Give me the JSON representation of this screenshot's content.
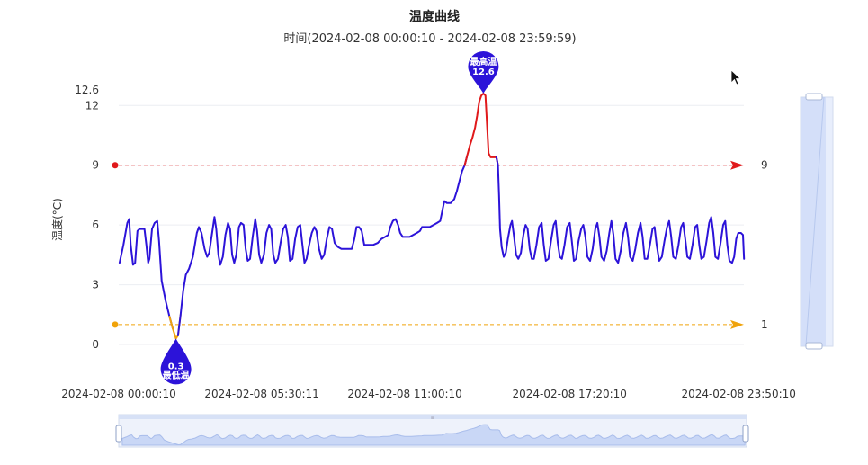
{
  "chart_data": {
    "type": "line",
    "title": "温度曲线",
    "subtitle": "时间(2024-02-08 00:00:10 - 2024-02-08 23:59:59)",
    "ylabel": "温度(°C)",
    "xlabel": "",
    "ylim": [
      0,
      12.6
    ],
    "x_range": [
      "2024-02-08 00:00:10",
      "2024-02-08 23:59:59"
    ],
    "y_ticks": [
      0,
      3,
      6,
      9,
      12,
      12.6
    ],
    "y_tick_labels": [
      "0",
      "3",
      "6",
      "9",
      "12",
      "12.6"
    ],
    "x_tick_labels": [
      "2024-02-08 00:00:10",
      "2024-02-08 05:30:11",
      "2024-02-08 11:00:10",
      "2024-02-08 17:20:10",
      "2024-02-08 23:50:10"
    ],
    "x_tick_values_hours": [
      0,
      5.5,
      11,
      17.333,
      23.833
    ],
    "grid": true,
    "series": [
      {
        "name": "",
        "color": "#2c13d9",
        "points": [
          [
            0.03,
            4.1
          ],
          [
            0.18,
            5.0
          ],
          [
            0.33,
            6.1
          ],
          [
            0.4,
            6.3
          ],
          [
            0.46,
            5.0
          ],
          [
            0.55,
            4.0
          ],
          [
            0.63,
            4.1
          ],
          [
            0.72,
            5.7
          ],
          [
            0.8,
            5.8
          ],
          [
            0.92,
            5.8
          ],
          [
            0.99,
            5.8
          ],
          [
            1.06,
            5.0
          ],
          [
            1.13,
            4.1
          ],
          [
            1.18,
            4.3
          ],
          [
            1.28,
            5.8
          ],
          [
            1.38,
            6.1
          ],
          [
            1.48,
            6.2
          ],
          [
            1.55,
            5.2
          ],
          [
            1.65,
            3.2
          ],
          [
            1.8,
            2.2
          ],
          [
            1.95,
            1.4
          ],
          [
            2.08,
            0.8
          ],
          [
            2.2,
            0.3
          ],
          [
            2.28,
            0.45
          ],
          [
            2.38,
            1.5
          ],
          [
            2.48,
            2.7
          ],
          [
            2.58,
            3.5
          ],
          [
            2.7,
            3.8
          ],
          [
            2.85,
            4.4
          ],
          [
            3.0,
            5.6
          ],
          [
            3.08,
            5.9
          ],
          [
            3.18,
            5.6
          ],
          [
            3.3,
            4.8
          ],
          [
            3.4,
            4.4
          ],
          [
            3.48,
            4.6
          ],
          [
            3.58,
            5.5
          ],
          [
            3.68,
            6.4
          ],
          [
            3.75,
            5.8
          ],
          [
            3.83,
            4.5
          ],
          [
            3.9,
            4.0
          ],
          [
            4.0,
            4.4
          ],
          [
            4.1,
            5.5
          ],
          [
            4.2,
            6.1
          ],
          [
            4.28,
            5.8
          ],
          [
            4.36,
            4.5
          ],
          [
            4.44,
            4.1
          ],
          [
            4.52,
            4.5
          ],
          [
            4.62,
            5.9
          ],
          [
            4.7,
            6.1
          ],
          [
            4.8,
            6.0
          ],
          [
            4.88,
            4.8
          ],
          [
            4.96,
            4.2
          ],
          [
            5.05,
            4.3
          ],
          [
            5.15,
            5.4
          ],
          [
            5.25,
            6.3
          ],
          [
            5.32,
            5.7
          ],
          [
            5.4,
            4.5
          ],
          [
            5.48,
            4.1
          ],
          [
            5.58,
            4.5
          ],
          [
            5.68,
            5.6
          ],
          [
            5.78,
            6.0
          ],
          [
            5.86,
            5.8
          ],
          [
            5.94,
            4.5
          ],
          [
            6.02,
            4.1
          ],
          [
            6.12,
            4.3
          ],
          [
            6.22,
            5.1
          ],
          [
            6.32,
            5.8
          ],
          [
            6.42,
            6.0
          ],
          [
            6.5,
            5.4
          ],
          [
            6.58,
            4.2
          ],
          [
            6.68,
            4.3
          ],
          [
            6.78,
            5.3
          ],
          [
            6.88,
            5.9
          ],
          [
            6.98,
            6.0
          ],
          [
            7.06,
            5.0
          ],
          [
            7.14,
            4.1
          ],
          [
            7.22,
            4.3
          ],
          [
            7.32,
            5.0
          ],
          [
            7.42,
            5.6
          ],
          [
            7.52,
            5.9
          ],
          [
            7.6,
            5.7
          ],
          [
            7.7,
            4.8
          ],
          [
            7.8,
            4.3
          ],
          [
            7.9,
            4.5
          ],
          [
            8.0,
            5.3
          ],
          [
            8.1,
            5.9
          ],
          [
            8.2,
            5.8
          ],
          [
            8.3,
            5.1
          ],
          [
            8.42,
            4.9
          ],
          [
            8.56,
            4.8
          ],
          [
            8.7,
            4.8
          ],
          [
            8.84,
            4.8
          ],
          [
            8.96,
            4.8
          ],
          [
            9.06,
            5.3
          ],
          [
            9.14,
            5.9
          ],
          [
            9.24,
            5.9
          ],
          [
            9.34,
            5.7
          ],
          [
            9.44,
            5.0
          ],
          [
            9.6,
            5.0
          ],
          [
            9.78,
            5.0
          ],
          [
            9.96,
            5.1
          ],
          [
            10.1,
            5.3
          ],
          [
            10.24,
            5.4
          ],
          [
            10.36,
            5.5
          ],
          [
            10.44,
            5.9
          ],
          [
            10.54,
            6.2
          ],
          [
            10.64,
            6.3
          ],
          [
            10.74,
            6.0
          ],
          [
            10.82,
            5.6
          ],
          [
            10.92,
            5.4
          ],
          [
            11.04,
            5.4
          ],
          [
            11.18,
            5.4
          ],
          [
            11.32,
            5.5
          ],
          [
            11.46,
            5.6
          ],
          [
            11.58,
            5.7
          ],
          [
            11.66,
            5.9
          ],
          [
            11.8,
            5.9
          ],
          [
            11.96,
            5.9
          ],
          [
            12.1,
            6.0
          ],
          [
            12.24,
            6.1
          ],
          [
            12.36,
            6.2
          ],
          [
            12.44,
            6.7
          ],
          [
            12.52,
            7.2
          ],
          [
            12.62,
            7.1
          ],
          [
            12.76,
            7.1
          ],
          [
            12.9,
            7.3
          ],
          [
            13.0,
            7.7
          ],
          [
            13.1,
            8.2
          ],
          [
            13.2,
            8.7
          ],
          [
            13.3,
            9.0
          ],
          [
            13.4,
            9.5
          ],
          [
            13.5,
            10.0
          ],
          [
            13.6,
            10.4
          ],
          [
            13.7,
            10.9
          ],
          [
            13.78,
            11.5
          ],
          [
            13.86,
            12.2
          ],
          [
            13.94,
            12.5
          ],
          [
            14.02,
            12.6
          ],
          [
            14.1,
            12.5
          ],
          [
            14.16,
            11.0
          ],
          [
            14.22,
            9.6
          ],
          [
            14.3,
            9.4
          ],
          [
            14.42,
            9.4
          ],
          [
            14.52,
            9.4
          ],
          [
            14.58,
            9.0
          ],
          [
            14.62,
            7.5
          ],
          [
            14.66,
            5.8
          ],
          [
            14.72,
            4.9
          ],
          [
            14.8,
            4.4
          ],
          [
            14.88,
            4.6
          ],
          [
            14.96,
            5.3
          ],
          [
            15.06,
            6.0
          ],
          [
            15.12,
            6.2
          ],
          [
            15.2,
            5.4
          ],
          [
            15.28,
            4.5
          ],
          [
            15.36,
            4.3
          ],
          [
            15.46,
            4.6
          ],
          [
            15.56,
            5.5
          ],
          [
            15.64,
            6.0
          ],
          [
            15.72,
            5.8
          ],
          [
            15.8,
            4.8
          ],
          [
            15.88,
            4.3
          ],
          [
            15.96,
            4.3
          ],
          [
            16.06,
            5.0
          ],
          [
            16.16,
            5.9
          ],
          [
            16.26,
            6.1
          ],
          [
            16.34,
            5.0
          ],
          [
            16.42,
            4.2
          ],
          [
            16.52,
            4.3
          ],
          [
            16.62,
            5.2
          ],
          [
            16.72,
            6.0
          ],
          [
            16.8,
            6.2
          ],
          [
            16.88,
            5.1
          ],
          [
            16.96,
            4.4
          ],
          [
            17.04,
            4.3
          ],
          [
            17.14,
            5.0
          ],
          [
            17.24,
            5.9
          ],
          [
            17.34,
            6.1
          ],
          [
            17.42,
            5.2
          ],
          [
            17.5,
            4.2
          ],
          [
            17.58,
            4.3
          ],
          [
            17.68,
            5.2
          ],
          [
            17.78,
            5.8
          ],
          [
            17.86,
            6.0
          ],
          [
            17.94,
            5.4
          ],
          [
            18.02,
            4.4
          ],
          [
            18.12,
            4.2
          ],
          [
            18.22,
            4.8
          ],
          [
            18.32,
            5.8
          ],
          [
            18.4,
            6.1
          ],
          [
            18.48,
            5.4
          ],
          [
            18.56,
            4.4
          ],
          [
            18.66,
            4.2
          ],
          [
            18.76,
            4.7
          ],
          [
            18.86,
            5.6
          ],
          [
            18.94,
            6.2
          ],
          [
            19.02,
            5.5
          ],
          [
            19.1,
            4.3
          ],
          [
            19.2,
            4.1
          ],
          [
            19.3,
            4.7
          ],
          [
            19.4,
            5.6
          ],
          [
            19.5,
            6.1
          ],
          [
            19.58,
            5.4
          ],
          [
            19.66,
            4.4
          ],
          [
            19.76,
            4.2
          ],
          [
            19.86,
            4.8
          ],
          [
            19.96,
            5.6
          ],
          [
            20.06,
            6.1
          ],
          [
            20.14,
            5.4
          ],
          [
            20.22,
            4.3
          ],
          [
            20.32,
            4.3
          ],
          [
            20.42,
            5.0
          ],
          [
            20.52,
            5.8
          ],
          [
            20.6,
            5.9
          ],
          [
            20.68,
            5.0
          ],
          [
            20.78,
            4.2
          ],
          [
            20.88,
            4.4
          ],
          [
            20.98,
            5.2
          ],
          [
            21.08,
            5.9
          ],
          [
            21.16,
            6.2
          ],
          [
            21.24,
            5.4
          ],
          [
            21.32,
            4.4
          ],
          [
            21.42,
            4.3
          ],
          [
            21.52,
            5.0
          ],
          [
            21.62,
            5.9
          ],
          [
            21.7,
            6.1
          ],
          [
            21.78,
            5.3
          ],
          [
            21.86,
            4.4
          ],
          [
            21.96,
            4.3
          ],
          [
            22.06,
            5.0
          ],
          [
            22.16,
            5.9
          ],
          [
            22.24,
            6.0
          ],
          [
            22.32,
            5.0
          ],
          [
            22.4,
            4.3
          ],
          [
            22.5,
            4.4
          ],
          [
            22.6,
            5.2
          ],
          [
            22.7,
            6.1
          ],
          [
            22.78,
            6.4
          ],
          [
            22.86,
            5.6
          ],
          [
            22.94,
            4.4
          ],
          [
            23.04,
            4.3
          ],
          [
            23.14,
            5.1
          ],
          [
            23.24,
            6.0
          ],
          [
            23.32,
            6.2
          ],
          [
            23.4,
            5.0
          ],
          [
            23.48,
            4.2
          ],
          [
            23.58,
            4.1
          ],
          [
            23.66,
            4.4
          ],
          [
            23.74,
            5.3
          ],
          [
            23.82,
            5.6
          ],
          [
            23.92,
            5.6
          ],
          [
            24.0,
            5.5
          ],
          [
            24.04,
            4.3
          ]
        ]
      }
    ],
    "markPoints": [
      {
        "name": "最高温",
        "value": "12.6",
        "x": 14.02,
        "y": 12.6,
        "color": "#2c13d9"
      },
      {
        "name": "最低温",
        "value": "0.3",
        "x": 2.2,
        "y": 0.3,
        "color": "#2c13d9"
      }
    ],
    "markLines": [
      {
        "value": 9,
        "label": "9",
        "color": "#e0191b"
      },
      {
        "value": 1,
        "label": "1",
        "color": "#f0a30b"
      }
    ],
    "visualMap": {
      "pieces": [
        {
          "lt": 1,
          "color": "#f0a30b"
        },
        {
          "gte": 1,
          "lte": 9,
          "color": "#2c13d9"
        },
        {
          "gt": 9,
          "color": "#e0191b"
        }
      ]
    }
  }
}
